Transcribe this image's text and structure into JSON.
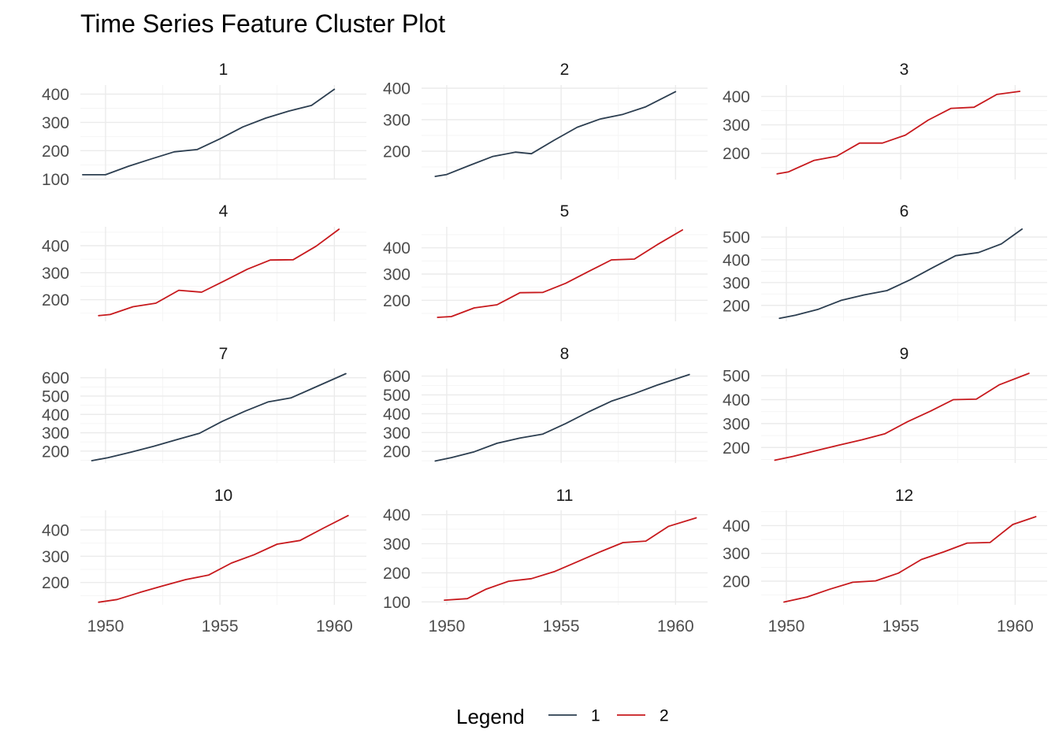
{
  "chart_data": {
    "type": "line",
    "title": "Time Series Feature Cluster Plot",
    "legend": {
      "title": "Legend",
      "position": "bottom",
      "entries": [
        {
          "name": "1",
          "color": "#2c3e50"
        },
        {
          "name": "2",
          "color": "#c7191d"
        }
      ]
    },
    "colors": {
      "1": "#2c3e50",
      "2": "#c7191d"
    },
    "grid": true,
    "xlim": [
      1948.9,
      1961.4
    ],
    "x_ticks": [
      1950,
      1955,
      1960
    ],
    "x_tick_labels": [
      "1950",
      "1955",
      "1960"
    ],
    "panels": [
      {
        "label": "1",
        "cluster": "1",
        "ylim": [
          98,
          432
        ],
        "yticks": [
          100,
          200,
          300,
          400
        ],
        "x": [
          1949,
          1950,
          1951,
          1952,
          1953,
          1954,
          1955,
          1956,
          1957,
          1958,
          1959,
          1960
        ],
        "y": [
          115,
          115,
          145,
          171,
          196,
          204,
          242,
          284,
          315,
          340,
          360,
          417
        ]
      },
      {
        "label": "2",
        "cluster": "1",
        "ylim": [
          110,
          410
        ],
        "yticks": [
          200,
          300,
          400
        ],
        "x": [
          1949.5,
          1950,
          1951,
          1952,
          1953,
          1953.7,
          1954.7,
          1955.7,
          1956.7,
          1957.7,
          1958.7,
          1960
        ],
        "y": [
          120,
          126,
          155,
          183,
          197,
          192,
          235,
          276,
          302,
          317,
          341,
          389
        ]
      },
      {
        "label": "3",
        "cluster": "2",
        "ylim": [
          108,
          440
        ],
        "yticks": [
          200,
          300,
          400
        ],
        "x": [
          1949.6,
          1950.1,
          1951.2,
          1952.2,
          1953.2,
          1954.2,
          1955.2,
          1956.2,
          1957.2,
          1958.2,
          1959.2,
          1960.2
        ],
        "y": [
          128,
          135,
          175,
          190,
          236,
          236,
          264,
          317,
          358,
          362,
          407,
          418
        ]
      },
      {
        "label": "4",
        "cluster": "2",
        "ylim": [
          120,
          470
        ],
        "yticks": [
          200,
          300,
          400
        ],
        "x": [
          1949.7,
          1950.2,
          1951.2,
          1952.2,
          1953.2,
          1954.2,
          1955.2,
          1956.2,
          1957.2,
          1958.2,
          1959.2,
          1960.2
        ],
        "y": [
          141,
          145,
          174,
          187,
          235,
          228,
          270,
          313,
          347,
          348,
          398,
          461
        ]
      },
      {
        "label": "5",
        "cluster": "2",
        "ylim": [
          120,
          480
        ],
        "yticks": [
          200,
          300,
          400
        ],
        "x": [
          1949.6,
          1950.2,
          1951.2,
          1952.2,
          1953.2,
          1954.2,
          1955.2,
          1956.2,
          1957.2,
          1958.2,
          1959.2,
          1960.3
        ],
        "y": [
          135,
          138,
          171,
          183,
          229,
          230,
          265,
          310,
          354,
          357,
          412,
          468
        ]
      },
      {
        "label": "6",
        "cluster": "1",
        "ylim": [
          130,
          545
        ],
        "yticks": [
          200,
          300,
          400,
          500
        ],
        "x": [
          1949.7,
          1950.4,
          1951.4,
          1952.4,
          1953.4,
          1954.4,
          1955.4,
          1956.4,
          1957.4,
          1958.4,
          1959.4,
          1960.3
        ],
        "y": [
          143,
          157,
          183,
          222,
          246,
          265,
          312,
          366,
          418,
          432,
          470,
          535
        ]
      },
      {
        "label": "7",
        "cluster": "1",
        "ylim": [
          135,
          650
        ],
        "yticks": [
          200,
          300,
          400,
          500,
          600
        ],
        "x": [
          1949.4,
          1950.1,
          1951.1,
          1952.1,
          1953.1,
          1954.1,
          1955.1,
          1956.1,
          1957.1,
          1958.1,
          1959.1,
          1960.5
        ],
        "y": [
          148,
          164,
          194,
          226,
          262,
          297,
          362,
          418,
          468,
          490,
          545,
          622
        ]
      },
      {
        "label": "8",
        "cluster": "1",
        "ylim": [
          138,
          640
        ],
        "yticks": [
          200,
          300,
          400,
          500,
          600
        ],
        "x": [
          1949.5,
          1950.2,
          1951.2,
          1952.2,
          1953.2,
          1954.2,
          1955.2,
          1956.2,
          1957.2,
          1958.2,
          1959.2,
          1960.6
        ],
        "y": [
          149,
          167,
          198,
          243,
          271,
          292,
          348,
          410,
          467,
          507,
          552,
          608
        ]
      },
      {
        "label": "9",
        "cluster": "2",
        "ylim": [
          135,
          530
        ],
        "yticks": [
          200,
          300,
          400,
          500
        ],
        "x": [
          1949.5,
          1950.3,
          1951.3,
          1952.3,
          1953.3,
          1954.3,
          1955.3,
          1956.3,
          1957.3,
          1958.3,
          1959.3,
          1960.6
        ],
        "y": [
          147,
          163,
          187,
          210,
          232,
          257,
          308,
          352,
          400,
          402,
          462,
          510
        ]
      },
      {
        "label": "10",
        "cluster": "2",
        "ylim": [
          115,
          475
        ],
        "yticks": [
          200,
          300,
          400
        ],
        "x": [
          1949.7,
          1950.5,
          1951.5,
          1952.5,
          1953.5,
          1954.5,
          1955.5,
          1956.5,
          1957.5,
          1958.5,
          1959.5,
          1960.6
        ],
        "y": [
          125,
          135,
          162,
          187,
          211,
          228,
          274,
          306,
          346,
          360,
          406,
          455
        ]
      },
      {
        "label": "11",
        "cluster": "2",
        "ylim": [
          90,
          415
        ],
        "yticks": [
          100,
          200,
          300,
          400
        ],
        "x": [
          1949.9,
          1950.9,
          1951.7,
          1952.7,
          1953.7,
          1954.7,
          1955.7,
          1956.7,
          1957.7,
          1958.7,
          1959.7,
          1960.9
        ],
        "y": [
          106,
          111,
          143,
          171,
          180,
          204,
          238,
          272,
          304,
          309,
          360,
          389
        ]
      },
      {
        "label": "12",
        "cluster": "2",
        "ylim": [
          115,
          455
        ],
        "yticks": [
          200,
          300,
          400
        ],
        "x": [
          1949.9,
          1950.9,
          1951.9,
          1952.9,
          1953.9,
          1954.9,
          1955.9,
          1956.9,
          1957.9,
          1958.9,
          1959.9,
          1960.9
        ],
        "y": [
          125,
          143,
          171,
          196,
          201,
          229,
          278,
          306,
          337,
          339,
          404,
          432
        ]
      }
    ]
  }
}
